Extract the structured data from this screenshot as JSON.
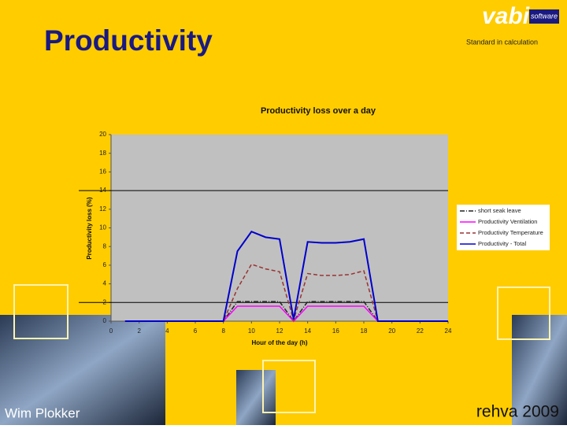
{
  "slide": {
    "title": "Productivity",
    "logo": "vabi",
    "logo_tag": "software",
    "tagline": "Standard in calculation",
    "author": "Wim Plokker",
    "event": "rehva 2009"
  },
  "chart_data": {
    "type": "line",
    "title": "Productivity loss over a day",
    "x_label": "Hour of the day (h)",
    "y_label": "Productivity loss (%)",
    "x": [
      1,
      2,
      3,
      4,
      5,
      6,
      7,
      8,
      9,
      10,
      11,
      12,
      13,
      14,
      15,
      16,
      17,
      18,
      19,
      20,
      21,
      22,
      23,
      24
    ],
    "xlim": [
      0,
      24
    ],
    "xticks": [
      0,
      2,
      4,
      6,
      8,
      10,
      12,
      14,
      16,
      18,
      20,
      22,
      24
    ],
    "ylim": [
      0,
      20
    ],
    "yticks": [
      0,
      2,
      4,
      6,
      8,
      10,
      12,
      14,
      16,
      18,
      20
    ],
    "hlines": [
      14,
      2
    ],
    "series": [
      {
        "name": "short seak leave",
        "color": "#222222",
        "line_style": "dashdot",
        "values": [
          0,
          0,
          0,
          0,
          0,
          0,
          0,
          0,
          2.1,
          2.1,
          2.1,
          2.1,
          0,
          2.1,
          2.1,
          2.1,
          2.1,
          2.1,
          0,
          0,
          0,
          0,
          0,
          0
        ]
      },
      {
        "name": "Productivity Ventilation",
        "color": "#ff00ff",
        "line_style": "solid",
        "values": [
          0,
          0,
          0,
          0,
          0,
          0,
          0,
          0,
          1.6,
          1.6,
          1.6,
          1.6,
          0,
          1.6,
          1.6,
          1.6,
          1.6,
          1.6,
          0,
          0,
          0,
          0,
          0,
          0
        ]
      },
      {
        "name": "Productivity Temperature",
        "color": "#993333",
        "line_style": "dashed",
        "values": [
          0,
          0,
          0,
          0,
          0,
          0,
          0,
          0,
          3.5,
          6.1,
          5.6,
          5.3,
          0.1,
          5.1,
          4.9,
          4.9,
          5.0,
          5.4,
          0,
          0,
          0,
          0,
          0,
          0
        ]
      },
      {
        "name": "Productivity - Total",
        "color": "#0000cc",
        "line_style": "solid",
        "values": [
          0,
          0,
          0,
          0,
          0,
          0,
          0,
          0,
          7.5,
          9.6,
          9.0,
          8.8,
          0.2,
          8.5,
          8.4,
          8.4,
          8.5,
          8.8,
          0,
          0,
          0,
          0,
          0,
          0
        ]
      }
    ]
  }
}
